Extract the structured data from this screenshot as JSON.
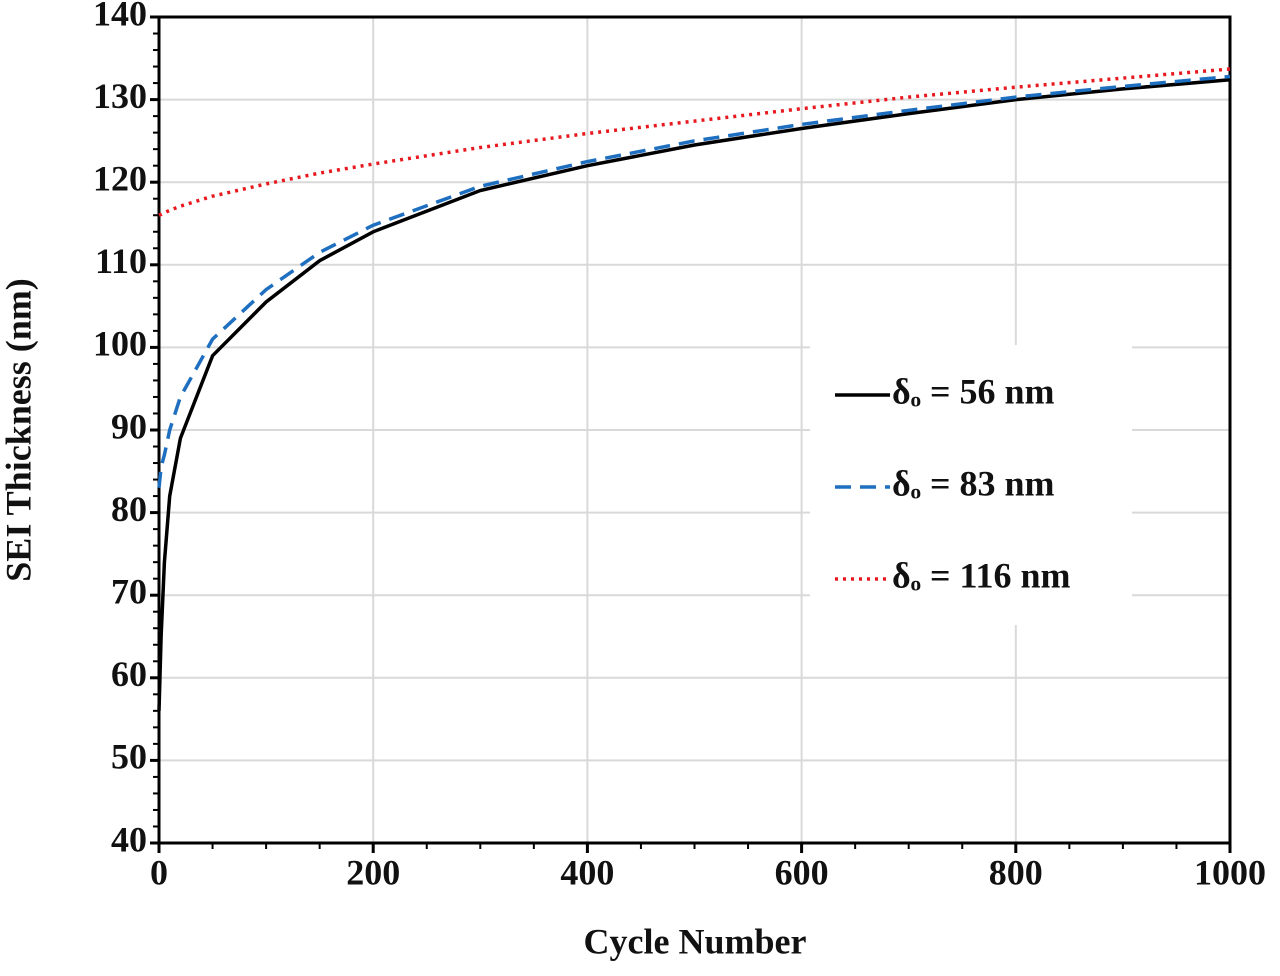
{
  "chart_data": {
    "type": "line",
    "xlabel": "Cycle Number",
    "ylabel": "SEI Thickness (nm)",
    "x": [
      0,
      2,
      5,
      10,
      20,
      50,
      100,
      150,
      200,
      300,
      400,
      500,
      600,
      700,
      800,
      900,
      1000
    ],
    "series": [
      {
        "name": "δₒ = 56 nm",
        "color": "#000000",
        "style": "solid",
        "values": [
          56,
          65,
          74,
          82,
          89,
          99,
          105.5,
          110.5,
          114,
          119,
          122,
          124.5,
          126.5,
          128.3,
          130,
          131.3,
          132.4
        ]
      },
      {
        "name": "δₒ = 83 nm",
        "color": "#1f6fc0",
        "style": "dashed",
        "values": [
          83,
          85.5,
          87,
          90,
          94,
          101,
          107,
          111.5,
          114.8,
          119.5,
          122.5,
          125,
          127,
          128.7,
          130.3,
          131.6,
          132.8
        ]
      },
      {
        "name": "δₒ = 116 nm",
        "color": "#e8191e",
        "style": "dotted",
        "values": [
          116,
          116.1,
          116.3,
          116.6,
          117.1,
          118.3,
          119.8,
          121.1,
          122.2,
          124.2,
          125.9,
          127.4,
          128.9,
          130.3,
          131.5,
          132.6,
          133.7
        ]
      }
    ],
    "xlim": [
      0,
      1000
    ],
    "xticks": [
      0,
      200,
      400,
      600,
      800,
      1000
    ],
    "ylim": [
      40,
      140
    ],
    "yticks": [
      40,
      50,
      60,
      70,
      80,
      90,
      100,
      110,
      120,
      130,
      140
    ],
    "grid": true
  }
}
